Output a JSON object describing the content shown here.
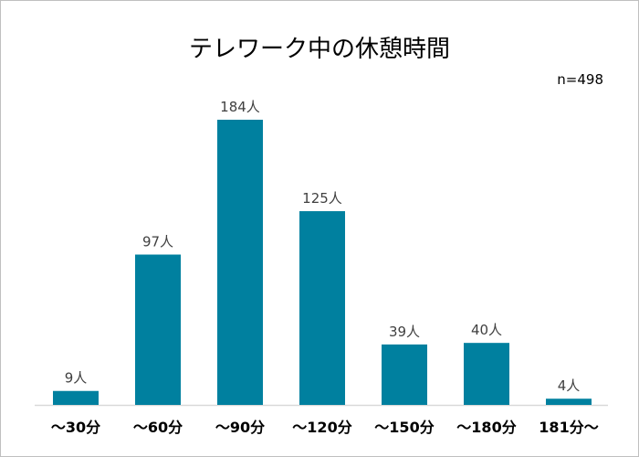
{
  "chart_data": {
    "type": "bar",
    "title": "テレワーク中の休憩時間",
    "annotation": "n=498",
    "categories": [
      "～30分",
      "～60分",
      "～90分",
      "～120分",
      "～150分",
      "～180分",
      "181分～"
    ],
    "values": [
      9,
      97,
      184,
      125,
      39,
      40,
      4
    ],
    "data_labels": [
      "9人",
      "97人",
      "184人",
      "125人",
      "39人",
      "40人",
      "4人"
    ],
    "xlabel": "",
    "ylabel": "",
    "ylim": [
      0,
      184
    ],
    "grid": false,
    "legend": "none",
    "colors": {
      "bar": "#00809F",
      "axis": "#d9d9d9",
      "label": "#404040"
    }
  }
}
